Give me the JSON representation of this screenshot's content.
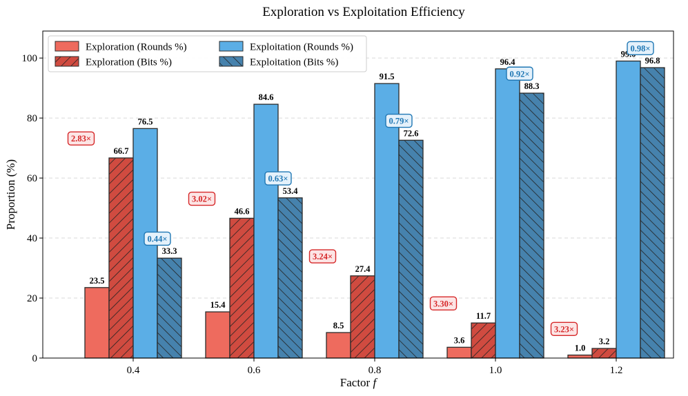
{
  "chart_data": {
    "type": "bar",
    "title": "Exploration vs Exploitation Efficiency",
    "xlabel_text": "Factor",
    "xlabel_var": "f",
    "ylabel": "Proportion (%)",
    "categories": [
      "0.4",
      "0.6",
      "0.8",
      "1.0",
      "1.2"
    ],
    "ylim": [
      0,
      109
    ],
    "yticks": [
      "0",
      "20",
      "40",
      "60",
      "80",
      "100"
    ],
    "grid": "horizontal dashed",
    "legend_position": "top-left",
    "series": [
      {
        "name": "Exploration (Rounds %)",
        "values": [
          23.5,
          15.4,
          8.5,
          3.6,
          1.0
        ],
        "labels": [
          "23.5",
          "15.4",
          "8.5",
          "3.6",
          "1.0"
        ],
        "color": "#EE6B5E",
        "hatch": false
      },
      {
        "name": "Exploration (Bits %)",
        "values": [
          66.7,
          46.6,
          27.4,
          11.7,
          3.2
        ],
        "labels": [
          "66.7",
          "46.6",
          "27.4",
          "11.7",
          "3.2"
        ],
        "color": "#D04B40",
        "hatch": true
      },
      {
        "name": "Exploitation (Rounds %)",
        "values": [
          76.5,
          84.6,
          91.5,
          96.4,
          99.0
        ],
        "labels": [
          "76.5",
          "84.6",
          "91.5",
          "96.4",
          "99.0"
        ],
        "color": "#5BAEE6",
        "hatch": false
      },
      {
        "name": "Exploitation (Bits %)",
        "values": [
          33.3,
          53.4,
          72.6,
          88.3,
          96.8
        ],
        "labels": [
          "33.3",
          "53.4",
          "72.6",
          "88.3",
          "96.8"
        ],
        "color": "#4682AD",
        "hatch": true
      }
    ],
    "annotations": {
      "exploration_ratio": {
        "color": "#D62728",
        "fill": "#FCE5E5",
        "labels": [
          "2.83×",
          "3.02×",
          "3.24×",
          "3.30×",
          "3.23×"
        ]
      },
      "exploitation_ratio": {
        "color": "#1F77B4",
        "fill": "#E4F1FB",
        "labels": [
          "0.44×",
          "0.63×",
          "0.79×",
          "0.92×",
          "0.98×"
        ]
      }
    }
  }
}
